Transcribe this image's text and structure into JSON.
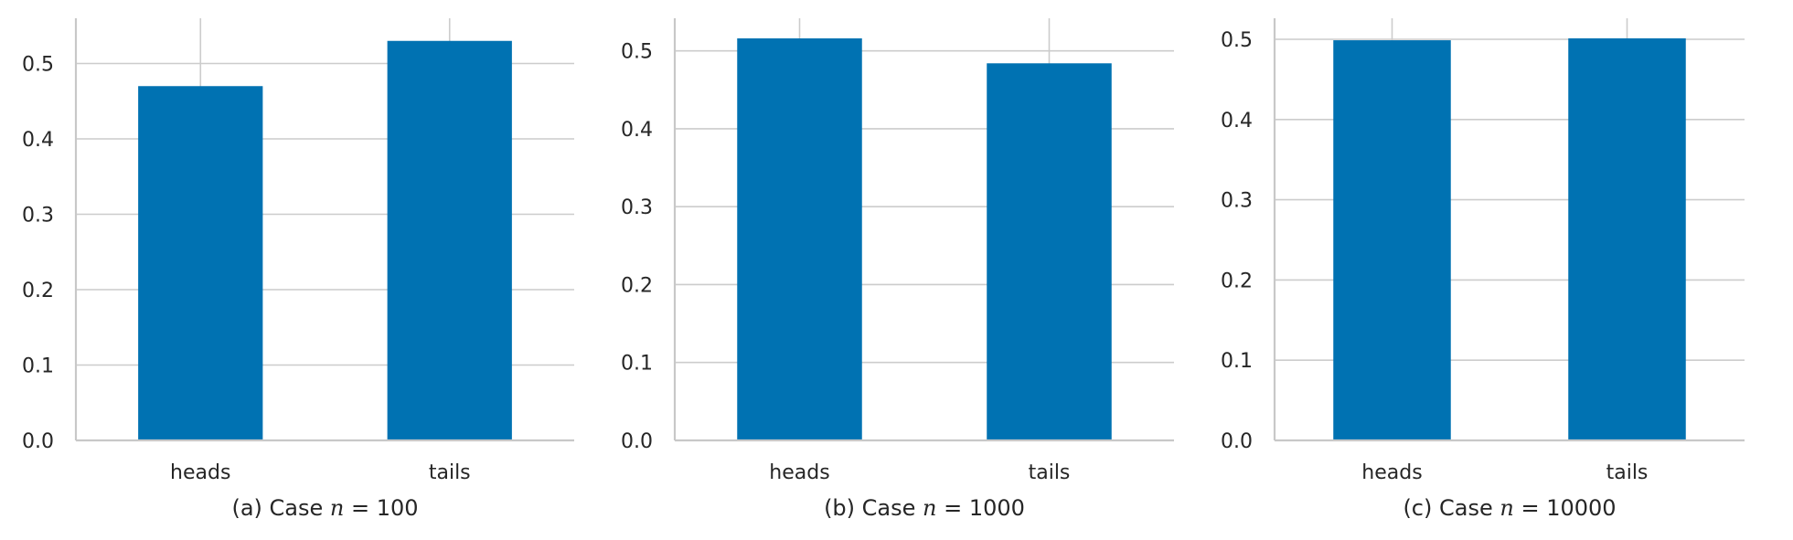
{
  "colors": {
    "bar": "#0072b2",
    "grid": "#cccccc",
    "axis": "#c8c8c8",
    "text": "#262626"
  },
  "chart_data": [
    {
      "type": "bar",
      "caption": "(a) Case ",
      "caption_var": "n",
      "caption_eq": " = 100",
      "categories": [
        "heads",
        "tails"
      ],
      "values": [
        0.47,
        0.53
      ],
      "ylim": [
        0,
        0.56
      ],
      "yticks": [
        0.0,
        0.1,
        0.2,
        0.3,
        0.4,
        0.5
      ],
      "grid": true,
      "xlabel": "",
      "ylabel": ""
    },
    {
      "type": "bar",
      "caption": "(b) Case ",
      "caption_var": "n",
      "caption_eq": " = 1000",
      "categories": [
        "heads",
        "tails"
      ],
      "values": [
        0.516,
        0.484
      ],
      "ylim": [
        0,
        0.5418
      ],
      "yticks": [
        0.0,
        0.1,
        0.2,
        0.3,
        0.4,
        0.5
      ],
      "grid": true,
      "xlabel": "",
      "ylabel": ""
    },
    {
      "type": "bar",
      "caption": "(c) Case ",
      "caption_var": "n",
      "caption_eq": " = 10000",
      "categories": [
        "heads",
        "tails"
      ],
      "values": [
        0.4988,
        0.5012
      ],
      "ylim": [
        0,
        0.5262
      ],
      "yticks": [
        0.0,
        0.1,
        0.2,
        0.3,
        0.4,
        0.5
      ],
      "grid": true,
      "xlabel": "",
      "ylabel": ""
    }
  ]
}
